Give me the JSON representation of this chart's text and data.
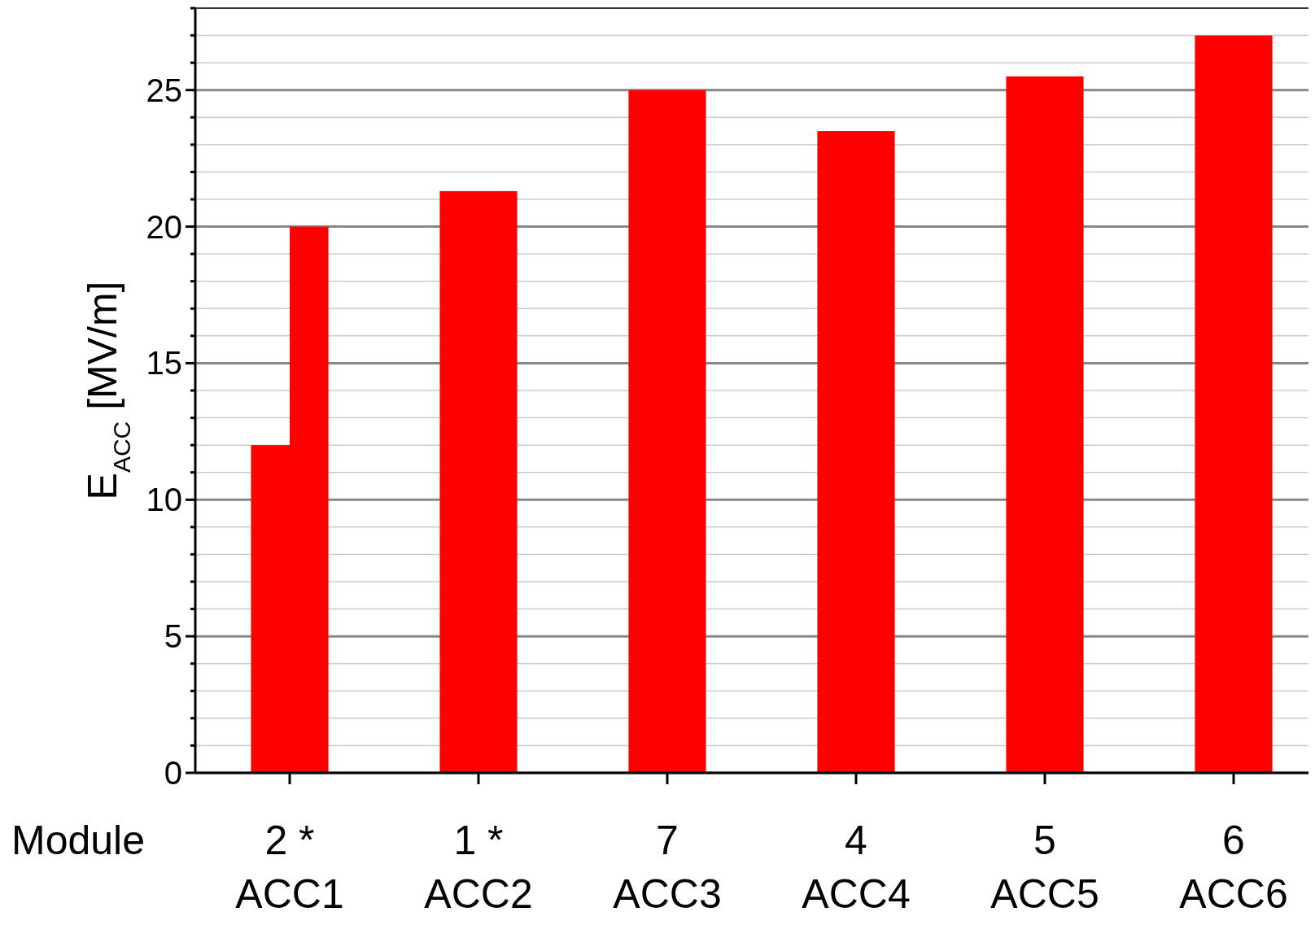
{
  "chart_data": {
    "type": "bar",
    "xlabel": "Module",
    "ylabel": "E$_{ACC}$ [MV/m]",
    "categories": [
      "2 *\nACC1",
      "1 *\nACC2",
      "7\nACC3",
      "4\nACC4",
      "5\nACC5",
      "6\nACC6"
    ],
    "series": [
      {
        "color": "#ff0000",
        "values": [
          12,
          null,
          null,
          null,
          null,
          null
        ]
      },
      {
        "color": "#ff0000",
        "values": [
          20,
          21.3,
          25,
          23.5,
          25.5,
          27
        ]
      }
    ],
    "ylim": [
      0,
      28
    ],
    "yticks": [
      0,
      {
        "value": 1,
        "label": null
      },
      {
        "value": 2,
        "label": null
      },
      {
        "value": 3,
        "label": null
      },
      {
        "value": 4,
        "label": null
      },
      5,
      {
        "value": 6,
        "label": null
      },
      {
        "value": 7,
        "label": null
      },
      {
        "value": 8,
        "label": null
      },
      {
        "value": 9,
        "label": null
      },
      10,
      {
        "value": 11,
        "label": null
      },
      {
        "value": 12,
        "label": null
      },
      {
        "value": 13,
        "label": null
      },
      {
        "value": 14,
        "label": null
      },
      15,
      {
        "value": 16,
        "label": null
      },
      {
        "value": 17,
        "label": null
      },
      {
        "value": 18,
        "label": null
      },
      {
        "value": 19,
        "label": null
      },
      20,
      {
        "value": 21,
        "label": null
      },
      {
        "value": 22,
        "label": null
      },
      {
        "value": 23,
        "label": null
      },
      {
        "value": 24,
        "label": null
      },
      25,
      {
        "value": 26,
        "label": null
      },
      {
        "value": 27,
        "label": null
      },
      {
        "value": 28,
        "label": null
      }
    ],
    "grid": true
  }
}
